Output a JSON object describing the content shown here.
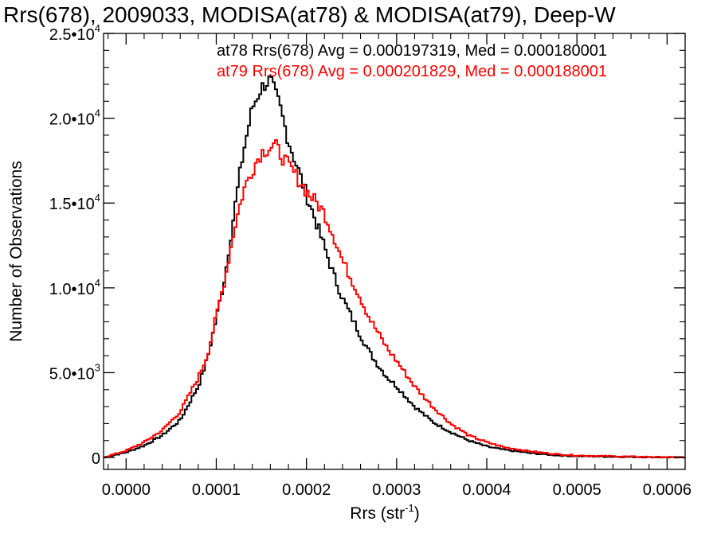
{
  "chart_data": {
    "type": "line",
    "title": "Rrs(678), 2009033, MODISA(at78) & MODISA(at79), Deep-W",
    "xlabel": "Rrs (str",
    "xlabel_sup": "-1",
    "xlabel_end": ")",
    "ylabel": "Number of Observations",
    "xlim": [
      -2.5e-05,
      0.00062
    ],
    "ylim": [
      -700,
      25000
    ],
    "x_ticks": [
      {
        "value": 0.0,
        "label": "0.0000"
      },
      {
        "value": 0.0001,
        "label": "0.0001"
      },
      {
        "value": 0.0002,
        "label": "0.0002"
      },
      {
        "value": 0.0003,
        "label": "0.0003"
      },
      {
        "value": 0.0004,
        "label": "0.0004"
      },
      {
        "value": 0.0005,
        "label": "0.0005"
      },
      {
        "value": 0.0006,
        "label": "0.0006"
      }
    ],
    "y_ticks": [
      {
        "value": 0,
        "mant": "0",
        "exp": ""
      },
      {
        "value": 5000,
        "mant": "5.0•10",
        "exp": "3"
      },
      {
        "value": 10000,
        "mant": "1.0•10",
        "exp": "4"
      },
      {
        "value": 15000,
        "mant": "1.5•10",
        "exp": "4"
      },
      {
        "value": 20000,
        "mant": "2.0•10",
        "exp": "4"
      },
      {
        "value": 25000,
        "mant": "2.5•10",
        "exp": "4"
      }
    ],
    "grid": false,
    "step": "histogram",
    "annotations": [
      {
        "text": "at78 Rrs(678) Avg = 0.000197319, Med = 0.000180001",
        "color": "#000000"
      },
      {
        "text": "at79 Rrs(678) Avg = 0.000201829, Med = 0.000188001",
        "color": "#ff0000"
      }
    ],
    "series": [
      {
        "color": "#000000",
        "x": [
          -2.5e-05,
          0.0,
          2e-05,
          4e-05,
          6e-05,
          7e-05,
          8e-05,
          9e-05,
          0.0001,
          0.00011,
          0.00012,
          0.00013,
          0.00014,
          0.00015,
          0.00016,
          0.000165,
          0.00017,
          0.00018,
          0.00019,
          0.0002,
          0.00021,
          0.00022,
          0.00023,
          0.00024,
          0.00025,
          0.00026,
          0.00027,
          0.00028,
          0.00029,
          0.0003,
          0.00032,
          0.00034,
          0.00036,
          0.00038,
          0.0004,
          0.00042,
          0.00045,
          0.00048,
          0.0005,
          0.00055,
          0.0006,
          0.00062
        ],
        "y": [
          0,
          300,
          700,
          1300,
          2200,
          3200,
          4200,
          5800,
          8200,
          10800,
          14500,
          18000,
          20600,
          21800,
          22300,
          21500,
          20800,
          18700,
          17100,
          15500,
          14000,
          12400,
          10800,
          9400,
          8300,
          7200,
          6200,
          5400,
          4700,
          4200,
          3000,
          2100,
          1500,
          1000,
          650,
          450,
          250,
          120,
          80,
          40,
          10,
          0
        ]
      },
      {
        "color": "#ff0000",
        "x": [
          -2.5e-05,
          0.0,
          2e-05,
          4e-05,
          6e-05,
          7e-05,
          8e-05,
          9e-05,
          0.0001,
          0.00011,
          0.00012,
          0.00013,
          0.00014,
          0.00015,
          0.00016,
          0.000165,
          0.00017,
          0.00018,
          0.00019,
          0.0002,
          0.00021,
          0.00022,
          0.00023,
          0.00024,
          0.00025,
          0.00026,
          0.00027,
          0.00028,
          0.00029,
          0.0003,
          0.00032,
          0.00034,
          0.00036,
          0.00038,
          0.0004,
          0.00042,
          0.00045,
          0.00048,
          0.0005,
          0.00055,
          0.0006,
          0.00062
        ],
        "y": [
          0,
          400,
          900,
          1600,
          2700,
          3700,
          4700,
          6000,
          8300,
          10600,
          13500,
          15700,
          17000,
          18000,
          18300,
          18400,
          18000,
          17200,
          16500,
          15700,
          15100,
          14400,
          13100,
          11600,
          10500,
          9400,
          8200,
          7300,
          6400,
          5700,
          4200,
          3000,
          2000,
          1300,
          900,
          600,
          350,
          180,
          120,
          60,
          15,
          0
        ]
      }
    ]
  }
}
